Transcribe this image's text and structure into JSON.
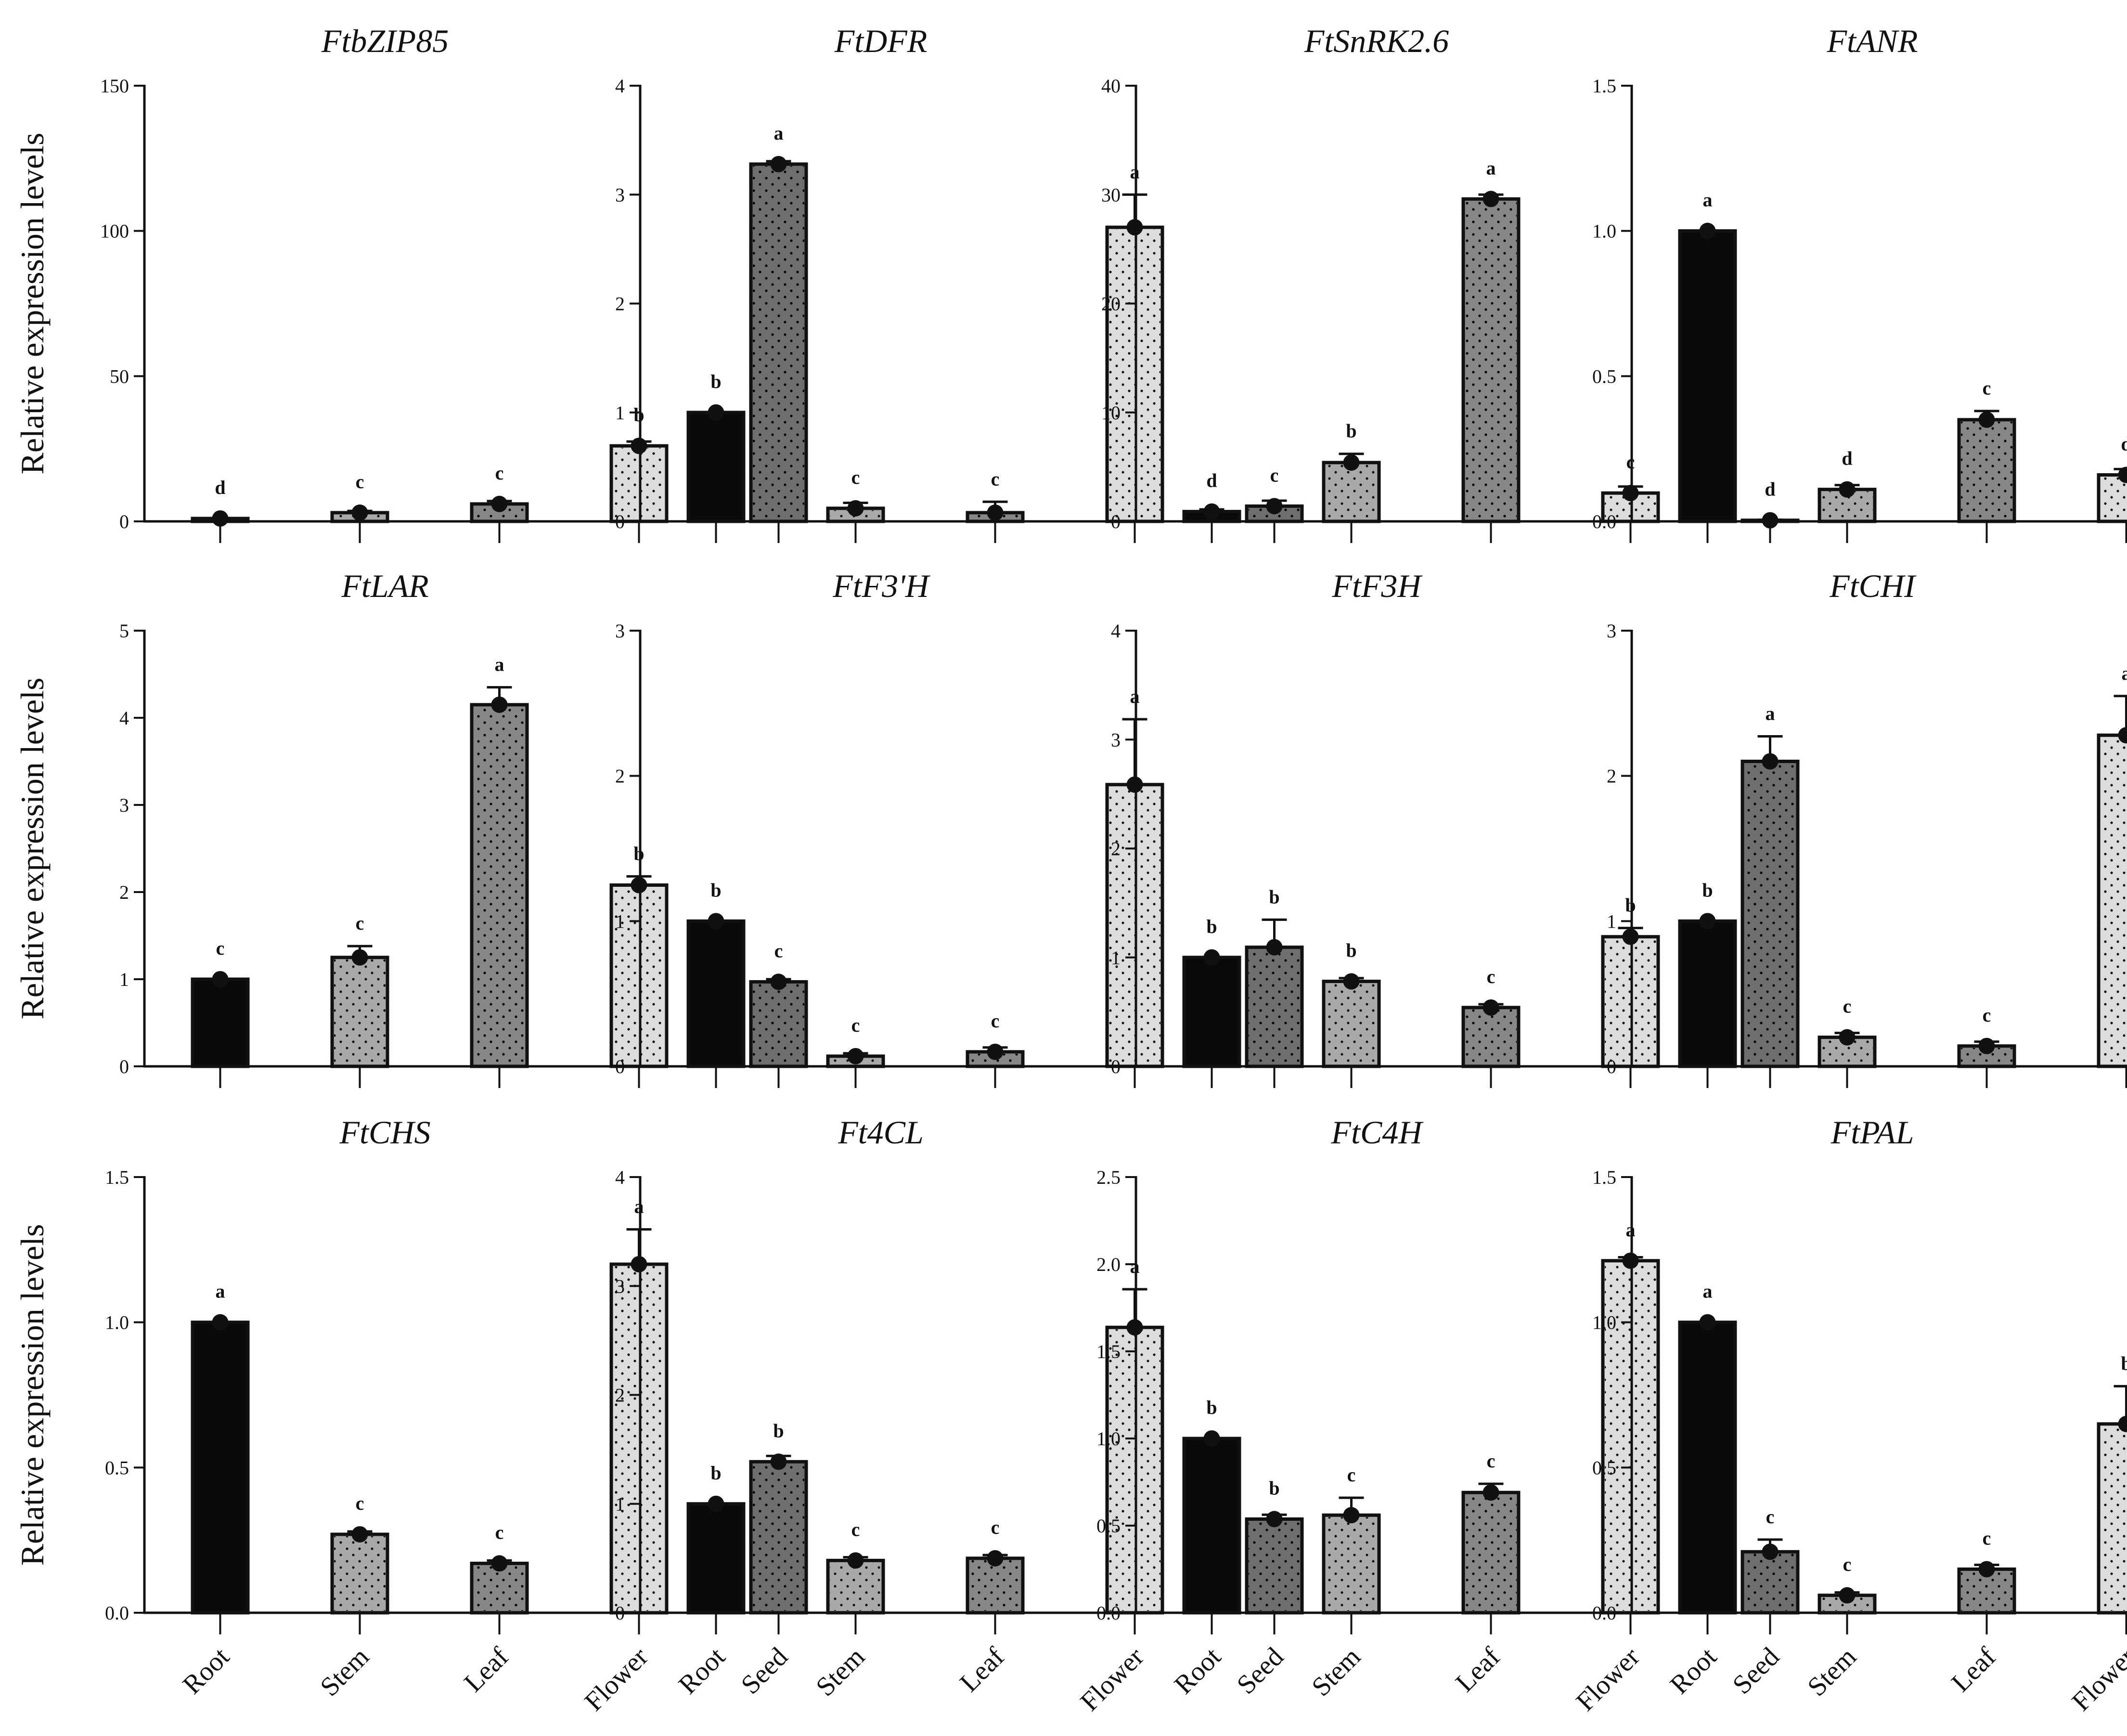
{
  "figure": {
    "y_axis_label": "Relative expression levels",
    "tissues": [
      "Root",
      "Stem",
      "Leaf",
      "Flower",
      "Seed"
    ]
  },
  "colors": {
    "Root": "#0a0a0a",
    "Stem": "#a9a9a9",
    "Leaf": "#878787",
    "Flower": "#dcdcdc",
    "Seed": "#6e6e6e"
  },
  "chart_data": [
    {
      "type": "bar",
      "title": "FtbZIP85",
      "ylabel": "Relative expression levels",
      "ylim": [
        0,
        150
      ],
      "yticks": [
        0,
        50,
        100,
        150
      ],
      "ytick_labels": [
        "0",
        "50",
        "100",
        "150"
      ],
      "categories": [
        "Root",
        "Stem",
        "Leaf",
        "Flower",
        "Seed"
      ],
      "values": [
        1,
        3,
        6,
        26,
        123
      ],
      "errors": [
        0,
        0.6,
        1,
        1.5,
        1
      ],
      "significance": [
        "d",
        "c",
        "c",
        "b",
        "a"
      ],
      "show_category_labels": false
    },
    {
      "type": "bar",
      "title": "FtDFR",
      "ylabel": "",
      "ylim": [
        0,
        4
      ],
      "yticks": [
        0,
        1,
        2,
        3,
        4
      ],
      "ytick_labels": [
        "0",
        "1",
        "2",
        "3",
        "4"
      ],
      "categories": [
        "Root",
        "Stem",
        "Leaf",
        "Flower",
        "Seed"
      ],
      "values": [
        1.0,
        0.12,
        0.08,
        2.7,
        0.14
      ],
      "errors": [
        0,
        0.05,
        0.1,
        0.3,
        0.05
      ],
      "significance": [
        "b",
        "c",
        "c",
        "a",
        "c"
      ],
      "show_category_labels": false
    },
    {
      "type": "bar",
      "title": "FtSnRK2.6",
      "ylabel": "",
      "ylim": [
        0,
        40
      ],
      "yticks": [
        0,
        10,
        20,
        30,
        40
      ],
      "ytick_labels": [
        "0",
        "10",
        "20",
        "30",
        "40"
      ],
      "categories": [
        "Root",
        "Stem",
        "Leaf",
        "Flower",
        "Seed"
      ],
      "values": [
        0.9,
        5.4,
        29.6,
        2.6,
        0.1
      ],
      "errors": [
        0.2,
        0.8,
        0.4,
        0.6,
        0.05
      ],
      "significance": [
        "d",
        "b",
        "a",
        "c",
        "d"
      ],
      "show_category_labels": false
    },
    {
      "type": "bar",
      "title": "FtANR",
      "ylabel": "",
      "ylim": [
        0,
        1.5
      ],
      "yticks": [
        0,
        0.5,
        1.0,
        1.5
      ],
      "ytick_labels": [
        "0.0",
        "0.5",
        "1.0",
        "1.5"
      ],
      "categories": [
        "Root",
        "Stem",
        "Leaf",
        "Flower",
        "Seed"
      ],
      "values": [
        1.0,
        0.11,
        0.35,
        0.16,
        0.72
      ],
      "errors": [
        0,
        0.015,
        0.03,
        0.02,
        0.06
      ],
      "significance": [
        "a",
        "d",
        "c",
        "d",
        "b"
      ],
      "show_category_labels": false
    },
    {
      "type": "bar",
      "title": "FtLAR",
      "ylabel": "Relative expression levels",
      "ylim": [
        0,
        5
      ],
      "yticks": [
        0,
        1,
        2,
        3,
        4,
        5
      ],
      "ytick_labels": [
        "0",
        "1",
        "2",
        "3",
        "4",
        "5"
      ],
      "categories": [
        "Root",
        "Stem",
        "Leaf",
        "Flower",
        "Seed"
      ],
      "values": [
        1.0,
        1.25,
        4.15,
        2.08,
        0.97
      ],
      "errors": [
        0,
        0.13,
        0.2,
        0.1,
        0.03
      ],
      "significance": [
        "c",
        "c",
        "a",
        "b",
        "c"
      ],
      "show_category_labels": false
    },
    {
      "type": "bar",
      "title": "FtF3'H",
      "ylabel": "",
      "ylim": [
        0,
        3
      ],
      "yticks": [
        0,
        1,
        2,
        3
      ],
      "ytick_labels": [
        "0",
        "1",
        "2",
        "3"
      ],
      "categories": [
        "Root",
        "Stem",
        "Leaf",
        "Flower",
        "Seed"
      ],
      "values": [
        1.0,
        0.07,
        0.1,
        1.94,
        0.82
      ],
      "errors": [
        0,
        0.02,
        0.03,
        0.45,
        0.19
      ],
      "significance": [
        "b",
        "c",
        "c",
        "a",
        "b"
      ],
      "show_category_labels": false
    },
    {
      "type": "bar",
      "title": "FtF3H",
      "ylabel": "",
      "ylim": [
        0,
        4
      ],
      "yticks": [
        0,
        1,
        2,
        3,
        4
      ],
      "ytick_labels": [
        "0",
        "1",
        "2",
        "3",
        "4"
      ],
      "categories": [
        "Root",
        "Stem",
        "Leaf",
        "Flower",
        "Seed"
      ],
      "values": [
        1.0,
        0.78,
        0.54,
        1.19,
        2.8
      ],
      "errors": [
        0,
        0.03,
        0.03,
        0.08,
        0.23
      ],
      "significance": [
        "b",
        "b",
        "c",
        "b",
        "a"
      ],
      "show_category_labels": false
    },
    {
      "type": "bar",
      "title": "FtCHI",
      "ylabel": "",
      "ylim": [
        0,
        3
      ],
      "yticks": [
        0,
        1,
        2,
        3
      ],
      "ytick_labels": [
        "0",
        "1",
        "2",
        "3"
      ],
      "categories": [
        "Root",
        "Stem",
        "Leaf",
        "Flower",
        "Seed"
      ],
      "values": [
        1.0,
        0.2,
        0.14,
        2.28,
        1.31
      ],
      "errors": [
        0,
        0.03,
        0.03,
        0.27,
        0.44
      ],
      "significance": [
        "b",
        "c",
        "c",
        "a",
        "b"
      ],
      "show_category_labels": false
    },
    {
      "type": "bar",
      "title": "FtCHS",
      "ylabel": "Relative expression levels",
      "ylim": [
        0,
        1.5
      ],
      "yticks": [
        0,
        0.5,
        1.0,
        1.5
      ],
      "ytick_labels": [
        "0.0",
        "0.5",
        "1.0",
        "1.5"
      ],
      "categories": [
        "Root",
        "Stem",
        "Leaf",
        "Flower",
        "Seed"
      ],
      "values": [
        1.0,
        0.27,
        0.17,
        1.2,
        0.52
      ],
      "errors": [
        0,
        0.01,
        0.01,
        0.12,
        0.02
      ],
      "significance": [
        "a",
        "c",
        "c",
        "a",
        "b"
      ],
      "show_category_labels": true
    },
    {
      "type": "bar",
      "title": "Ft4CL",
      "ylabel": "",
      "ylim": [
        0,
        4
      ],
      "yticks": [
        0,
        1,
        2,
        3,
        4
      ],
      "ytick_labels": [
        "0",
        "1",
        "2",
        "3",
        "4"
      ],
      "categories": [
        "Root",
        "Stem",
        "Leaf",
        "Flower",
        "Seed"
      ],
      "values": [
        1.0,
        0.48,
        0.5,
        2.62,
        0.86
      ],
      "errors": [
        0,
        0.03,
        0.03,
        0.35,
        0.04
      ],
      "significance": [
        "b",
        "c",
        "c",
        "a",
        "b"
      ],
      "show_category_labels": true
    },
    {
      "type": "bar",
      "title": "FtC4H",
      "ylabel": "",
      "ylim": [
        0,
        2.5
      ],
      "yticks": [
        0,
        0.5,
        1.0,
        1.5,
        2.0,
        2.5
      ],
      "ytick_labels": [
        "0.0",
        "0.5",
        "1.0",
        "1.5",
        "2.0",
        "2.5"
      ],
      "categories": [
        "Root",
        "Stem",
        "Leaf",
        "Flower",
        "Seed"
      ],
      "values": [
        1.0,
        0.56,
        0.69,
        2.02,
        0.35
      ],
      "errors": [
        0,
        0.1,
        0.05,
        0.02,
        0.07
      ],
      "significance": [
        "b",
        "c",
        "c",
        "a",
        "c"
      ],
      "show_category_labels": true
    },
    {
      "type": "bar",
      "title": "FtPAL",
      "ylabel": "",
      "ylim": [
        0,
        1.5
      ],
      "yticks": [
        0,
        0.5,
        1.0,
        1.5
      ],
      "ytick_labels": [
        "0.0",
        "0.5",
        "1.0",
        "1.5"
      ],
      "categories": [
        "Root",
        "Stem",
        "Leaf",
        "Flower",
        "Seed"
      ],
      "values": [
        1.0,
        0.06,
        0.15,
        0.65,
        0.12
      ],
      "errors": [
        0,
        0.01,
        0.015,
        0.13,
        0.01
      ],
      "significance": [
        "a",
        "c",
        "c",
        "b",
        "c"
      ],
      "show_category_labels": true
    }
  ]
}
